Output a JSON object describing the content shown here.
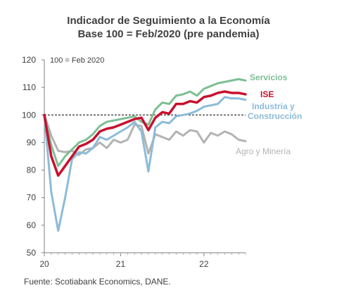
{
  "chart_data": {
    "type": "line",
    "title": "Indicador de Seguimiento a la Economía",
    "subtitle": "Base 100 = Feb/2020 (pre pandemia)",
    "annotation": "100 = Feb 2020",
    "source": "Fuente: Scotiabank Economics, DANE.",
    "xlabel": "",
    "ylabel": "",
    "x_ticks": [
      "20",
      "21",
      "22"
    ],
    "y_ticks": [
      50,
      60,
      70,
      80,
      90,
      100,
      110,
      120
    ],
    "ylim": [
      50,
      120
    ],
    "reference_line": 100,
    "grid": false,
    "legend": "inline-right",
    "x": [
      "2020-02",
      "2020-03",
      "2020-04",
      "2020-05",
      "2020-06",
      "2020-07",
      "2020-08",
      "2020-09",
      "2020-10",
      "2020-11",
      "2020-12",
      "2021-01",
      "2021-02",
      "2021-03",
      "2021-04",
      "2021-05",
      "2021-06",
      "2021-07",
      "2021-08",
      "2021-09",
      "2021-10",
      "2021-11",
      "2021-12",
      "2022-01",
      "2022-02",
      "2022-03",
      "2022-04",
      "2022-05",
      "2022-06",
      "2022-07"
    ],
    "series": [
      {
        "name": "Servicios",
        "color": "#7DBF93",
        "values": [
          100,
          89,
          81.5,
          85,
          87.5,
          90,
          91,
          93,
          96,
          97.5,
          98,
          98.5,
          99,
          99.5,
          97.5,
          96.5,
          102,
          104.5,
          104,
          107,
          107.5,
          108.5,
          107,
          109.5,
          110.5,
          111.5,
          112,
          112.5,
          113,
          112.5
        ]
      },
      {
        "name": "ISE",
        "color": "#C8102E",
        "values": [
          100,
          85,
          78,
          81.5,
          85,
          88.5,
          89.5,
          91,
          94,
          95,
          95.5,
          96.5,
          97.5,
          98.5,
          99,
          94.5,
          99,
          101,
          100.5,
          104,
          104,
          105,
          104.5,
          106.5,
          107,
          108,
          108.5,
          108,
          108,
          107.5
        ]
      },
      {
        "name": "Industria y Construcción",
        "color": "#8BBCD9",
        "values": [
          100,
          72,
          58,
          70,
          84,
          86.5,
          86,
          88,
          92,
          91,
          92.5,
          94,
          95.5,
          97.5,
          94,
          79.5,
          95.5,
          97.5,
          97,
          99.5,
          100,
          100.5,
          101.5,
          103,
          103.5,
          104,
          106.5,
          106,
          106,
          105.5
        ]
      },
      {
        "name": "Agro y Minería",
        "color": "#B3B3B3",
        "values": [
          100,
          92.5,
          87,
          86.5,
          87,
          85.5,
          87.5,
          88,
          90,
          88,
          91,
          90,
          91,
          96.5,
          96,
          86,
          93,
          92,
          91,
          94,
          92.5,
          94.5,
          94,
          90,
          93.5,
          92.5,
          94,
          93,
          91,
          90.5
        ]
      }
    ]
  }
}
